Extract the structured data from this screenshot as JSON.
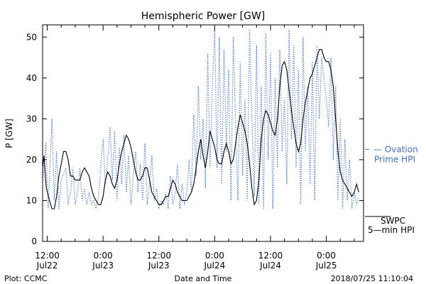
{
  "footer": {
    "plot_source": "Plot: CCMC",
    "timestamp": "2018/07/25 11:10:04"
  },
  "chart_data": {
    "type": "line",
    "title": "Hemispheric Power [GW]",
    "xlabel": "Date and Time",
    "ylabel": "P [GW]",
    "ylim": [
      0,
      53
    ],
    "yticks": [
      0,
      10,
      20,
      30,
      40,
      50
    ],
    "xlim_hours": [
      0,
      69
    ],
    "xticks": [
      {
        "h": 1,
        "line1": "12:00",
        "line2": "Jul22"
      },
      {
        "h": 13,
        "line1": "0:00",
        "line2": "Jul23"
      },
      {
        "h": 25,
        "line1": "12:00",
        "line2": "Jul23"
      },
      {
        "h": 37,
        "line1": "0:00",
        "line2": "Jul24"
      },
      {
        "h": 49,
        "line1": "12:00",
        "line2": "Jul24"
      },
      {
        "h": 61,
        "line1": "0:00",
        "line2": "Jul25"
      }
    ],
    "colors": {
      "swpc": "#000000",
      "ovation": "#3f6fc7"
    },
    "series": [
      {
        "name": "SWPC 5-min HPI",
        "legend_line1": "SWPC",
        "legend_line2": "5—min HPI",
        "legend_value": 7.5,
        "style": "solid",
        "points": [
          [
            0,
            18
          ],
          [
            0.3,
            21
          ],
          [
            0.8,
            13
          ],
          [
            1.5,
            10
          ],
          [
            2,
            8
          ],
          [
            2.5,
            8
          ],
          [
            3,
            11
          ],
          [
            3.5,
            16
          ],
          [
            4,
            19
          ],
          [
            4.5,
            22
          ],
          [
            5,
            22
          ],
          [
            5.5,
            20
          ],
          [
            6,
            16
          ],
          [
            6.5,
            16
          ],
          [
            7,
            15
          ],
          [
            7.5,
            15
          ],
          [
            8,
            15
          ],
          [
            8.5,
            17
          ],
          [
            9,
            18
          ],
          [
            9.5,
            17
          ],
          [
            10,
            16
          ],
          [
            10.5,
            13
          ],
          [
            11,
            11
          ],
          [
            11.5,
            10
          ],
          [
            12,
            9
          ],
          [
            12.5,
            9
          ],
          [
            13,
            11
          ],
          [
            13.5,
            15
          ],
          [
            14,
            17
          ],
          [
            14.5,
            16
          ],
          [
            15,
            14
          ],
          [
            15.5,
            13
          ],
          [
            16,
            15
          ],
          [
            16.5,
            19
          ],
          [
            17,
            22
          ],
          [
            17.5,
            24
          ],
          [
            18,
            26
          ],
          [
            18.5,
            25
          ],
          [
            19,
            23
          ],
          [
            19.5,
            20
          ],
          [
            20,
            17
          ],
          [
            20.5,
            15
          ],
          [
            21,
            15
          ],
          [
            21.5,
            16
          ],
          [
            22,
            18
          ],
          [
            22.5,
            18
          ],
          [
            23,
            15
          ],
          [
            23.5,
            12
          ],
          [
            24,
            11
          ],
          [
            24.5,
            10
          ],
          [
            25,
            9
          ],
          [
            25.5,
            9
          ],
          [
            26,
            10
          ],
          [
            26.5,
            11
          ],
          [
            27,
            11
          ],
          [
            27.5,
            13
          ],
          [
            28,
            15
          ],
          [
            28.5,
            14
          ],
          [
            29,
            12
          ],
          [
            29.5,
            11
          ],
          [
            30,
            10
          ],
          [
            30.5,
            10
          ],
          [
            31,
            10
          ],
          [
            31.5,
            11
          ],
          [
            32,
            12
          ],
          [
            32.5,
            14
          ],
          [
            33,
            18
          ],
          [
            33.5,
            22
          ],
          [
            34,
            25
          ],
          [
            34.5,
            21
          ],
          [
            35,
            18
          ],
          [
            35.5,
            22
          ],
          [
            36,
            27
          ],
          [
            36.5,
            25
          ],
          [
            37,
            23
          ],
          [
            37.5,
            20
          ],
          [
            38,
            19
          ],
          [
            38.5,
            19
          ],
          [
            39,
            22
          ],
          [
            39.5,
            24
          ],
          [
            40,
            22
          ],
          [
            40.5,
            19
          ],
          [
            41,
            20
          ],
          [
            41.5,
            24
          ],
          [
            42,
            28
          ],
          [
            42.5,
            31
          ],
          [
            43,
            29
          ],
          [
            43.5,
            27
          ],
          [
            44,
            24
          ],
          [
            44.5,
            19
          ],
          [
            45,
            13
          ],
          [
            45.5,
            9
          ],
          [
            46,
            10
          ],
          [
            46.5,
            15
          ],
          [
            47,
            25
          ],
          [
            47.5,
            30
          ],
          [
            48,
            32
          ],
          [
            48.5,
            31
          ],
          [
            49,
            29
          ],
          [
            49.5,
            27
          ],
          [
            50,
            26
          ],
          [
            50.5,
            30
          ],
          [
            51,
            38
          ],
          [
            51.5,
            43
          ],
          [
            52,
            44
          ],
          [
            52.5,
            42
          ],
          [
            53,
            37
          ],
          [
            53.5,
            32
          ],
          [
            54,
            28
          ],
          [
            54.5,
            24
          ],
          [
            55,
            22
          ],
          [
            55.5,
            24
          ],
          [
            56,
            30
          ],
          [
            56.5,
            34
          ],
          [
            57,
            37
          ],
          [
            57.5,
            40
          ],
          [
            58,
            41
          ],
          [
            58.5,
            43
          ],
          [
            59,
            45
          ],
          [
            59.5,
            47
          ],
          [
            60,
            47
          ],
          [
            60.5,
            45
          ],
          [
            61,
            44
          ],
          [
            61.5,
            44
          ],
          [
            62,
            42
          ],
          [
            62.5,
            38
          ],
          [
            63,
            30
          ],
          [
            63.5,
            22
          ],
          [
            64,
            17
          ],
          [
            64.5,
            15
          ],
          [
            65,
            14
          ],
          [
            65.5,
            13
          ],
          [
            66,
            12
          ],
          [
            66.5,
            11
          ],
          [
            67,
            12
          ],
          [
            67.5,
            14
          ],
          [
            68,
            12
          ]
        ]
      },
      {
        "name": "Ovation Prime HPI",
        "legend_line1": "— Ovation",
        "legend_line2": "Prime HPI",
        "legend_value": 21.5,
        "style": "dotted",
        "points": [
          [
            0,
            14
          ],
          [
            0.7,
            24
          ],
          [
            1.2,
            8
          ],
          [
            2,
            30
          ],
          [
            2.5,
            10
          ],
          [
            3,
            22
          ],
          [
            3.5,
            8
          ],
          [
            4,
            15
          ],
          [
            5,
            18
          ],
          [
            5.5,
            9
          ],
          [
            6,
            12
          ],
          [
            6.5,
            18
          ],
          [
            7,
            9
          ],
          [
            7.5,
            12
          ],
          [
            8,
            18
          ],
          [
            8.5,
            10
          ],
          [
            9,
            13
          ],
          [
            9.5,
            9
          ],
          [
            10,
            12
          ],
          [
            10.5,
            9
          ],
          [
            11,
            10
          ],
          [
            11.5,
            8
          ],
          [
            12,
            11
          ],
          [
            13,
            25
          ],
          [
            13.5,
            14
          ],
          [
            14,
            20
          ],
          [
            14.5,
            28
          ],
          [
            15,
            15
          ],
          [
            15.5,
            27
          ],
          [
            16,
            10
          ],
          [
            16.5,
            23
          ],
          [
            17,
            14
          ],
          [
            17.5,
            26
          ],
          [
            18,
            12
          ],
          [
            18.5,
            21
          ],
          [
            19,
            9
          ],
          [
            19.5,
            16
          ],
          [
            20,
            22
          ],
          [
            20.5,
            12
          ],
          [
            21,
            19
          ],
          [
            21.5,
            10
          ],
          [
            22,
            24
          ],
          [
            22.5,
            9
          ],
          [
            23,
            14
          ],
          [
            23.5,
            21
          ],
          [
            24,
            10
          ],
          [
            24.5,
            13
          ],
          [
            25,
            8
          ],
          [
            25.5,
            10
          ],
          [
            26,
            9
          ],
          [
            26.5,
            12
          ],
          [
            27,
            8
          ],
          [
            27.5,
            16
          ],
          [
            28,
            9
          ],
          [
            28.5,
            12
          ],
          [
            29,
            19
          ],
          [
            29.5,
            8
          ],
          [
            30,
            14
          ],
          [
            30.5,
            9
          ],
          [
            31,
            12
          ],
          [
            31.5,
            20
          ],
          [
            32,
            12
          ],
          [
            32.5,
            31
          ],
          [
            33,
            16
          ],
          [
            33.5,
            38
          ],
          [
            34,
            20
          ],
          [
            34.5,
            30
          ],
          [
            35,
            13
          ],
          [
            35.5,
            46
          ],
          [
            36,
            18
          ],
          [
            36.5,
            38
          ],
          [
            37,
            52
          ],
          [
            37.5,
            18
          ],
          [
            38,
            50
          ],
          [
            38.5,
            14
          ],
          [
            39,
            47
          ],
          [
            39.5,
            22
          ],
          [
            40,
            42
          ],
          [
            40.5,
            10
          ],
          [
            41,
            50
          ],
          [
            41.5,
            28
          ],
          [
            42,
            10
          ],
          [
            42.5,
            44
          ],
          [
            43,
            16
          ],
          [
            43.5,
            35
          ],
          [
            44,
            10
          ],
          [
            44.5,
            52
          ],
          [
            45,
            30
          ],
          [
            45.5,
            11
          ],
          [
            46,
            48
          ],
          [
            46.5,
            9
          ],
          [
            47,
            38
          ],
          [
            47.5,
            8
          ],
          [
            48,
            51
          ],
          [
            48.5,
            20
          ],
          [
            49,
            46
          ],
          [
            49.5,
            8
          ],
          [
            50,
            40
          ],
          [
            50.5,
            18
          ],
          [
            51,
            47
          ],
          [
            51.5,
            22
          ],
          [
            52,
            35
          ],
          [
            52.5,
            14
          ],
          [
            53,
            52
          ],
          [
            53.5,
            25
          ],
          [
            54,
            48
          ],
          [
            54.5,
            18
          ],
          [
            55,
            42
          ],
          [
            55.5,
            9
          ],
          [
            56,
            50
          ],
          [
            56.5,
            22
          ],
          [
            57,
            38
          ],
          [
            57.5,
            14
          ],
          [
            58,
            44
          ],
          [
            58.5,
            10
          ],
          [
            59,
            48
          ],
          [
            59.5,
            30
          ],
          [
            60,
            45
          ],
          [
            60.5,
            40
          ],
          [
            61,
            35
          ],
          [
            61.5,
            28
          ],
          [
            62,
            45
          ],
          [
            62.5,
            20
          ],
          [
            63,
            38
          ],
          [
            63.5,
            10
          ],
          [
            64,
            30
          ],
          [
            64.5,
            8
          ],
          [
            65,
            25
          ],
          [
            65.5,
            10
          ],
          [
            66,
            20
          ],
          [
            66.5,
            8
          ],
          [
            67,
            12
          ],
          [
            67.5,
            9
          ],
          [
            68,
            11
          ]
        ]
      }
    ]
  }
}
